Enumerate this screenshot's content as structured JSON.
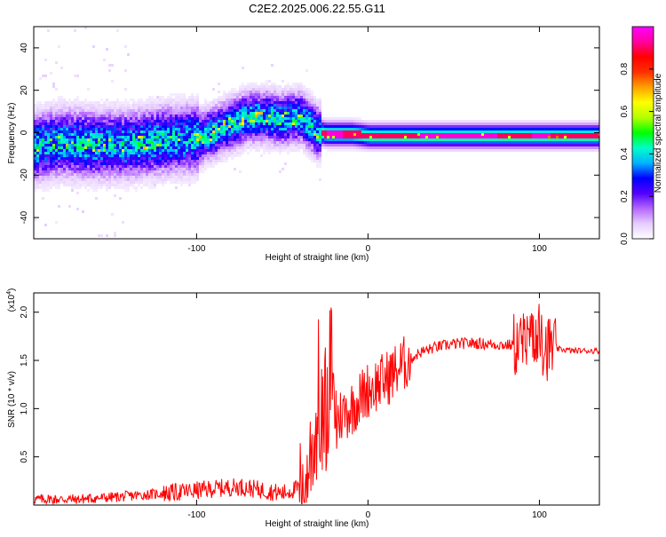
{
  "title": "C2E2.2025.006.22.55.G11",
  "chart_data": [
    {
      "type": "heatmap",
      "xlabel": "Height of straight line (km)",
      "ylabel": "Frequency (Hz)",
      "xlim": [
        -195,
        135
      ],
      "ylim": [
        -50,
        50
      ],
      "xticks": [
        -100,
        0,
        100
      ],
      "yticks": [
        -40,
        -20,
        0,
        20,
        40
      ],
      "colorbar": {
        "label": "Normalized spectral amplitude",
        "range": [
          0,
          1
        ],
        "ticks": [
          "0.0",
          "0.2",
          "0.4",
          "0.6",
          "0.8"
        ],
        "colormap": [
          "#ffffff",
          "#e6ccff",
          "#b366ff",
          "#5200ff",
          "#0000ff",
          "#00b4ff",
          "#00ffc8",
          "#00ff00",
          "#b4ff00",
          "#ffff00",
          "#ffa000",
          "#ff3000",
          "#ff0000",
          "#ff00a0",
          "#ff00ff"
        ]
      },
      "ridge": {
        "x": [
          -195,
          -180,
          -160,
          -140,
          -120,
          -100,
          -90,
          -80,
          -70,
          -60,
          -50,
          -40,
          -30,
          -25,
          -20,
          -10,
          0,
          20,
          40,
          60,
          80,
          100,
          120,
          135
        ],
        "y": [
          -6,
          -4,
          -5,
          -5,
          -3,
          -2,
          1,
          5,
          8,
          8,
          7,
          8,
          1,
          0,
          0,
          0,
          -1,
          -1,
          -1,
          -1,
          -1,
          -1,
          -1,
          -1
        ]
      }
    },
    {
      "type": "line",
      "xlabel": "Height of straight line (km)",
      "ylabel": "SNR (10 * v/v)",
      "yscale_label": "(x10",
      "yscale_exp": "4",
      "xlim": [
        -195,
        135
      ],
      "ylim": [
        0,
        2.2
      ],
      "xticks": [
        -100,
        0,
        100
      ],
      "yticks": [
        "0.5",
        "1.0",
        "1.5",
        "2.0"
      ],
      "color": "#ff0000",
      "envelope": {
        "x": [
          -195,
          -170,
          -150,
          -120,
          -100,
          -90,
          -75,
          -60,
          -50,
          -40,
          -35,
          -30,
          -25,
          -20,
          -15,
          -10,
          -5,
          0,
          10,
          20,
          30,
          40,
          50,
          60,
          70,
          80,
          85,
          90,
          95,
          100,
          105,
          110,
          120,
          135
        ],
        "y": [
          0.06,
          0.06,
          0.08,
          0.12,
          0.15,
          0.17,
          0.19,
          0.15,
          0.12,
          0.18,
          0.4,
          0.8,
          0.95,
          0.85,
          0.95,
          1.0,
          1.1,
          1.2,
          1.3,
          1.45,
          1.58,
          1.64,
          1.67,
          1.68,
          1.67,
          1.66,
          1.66,
          1.68,
          1.65,
          1.68,
          1.63,
          1.62,
          1.6,
          1.6
        ]
      }
    }
  ]
}
